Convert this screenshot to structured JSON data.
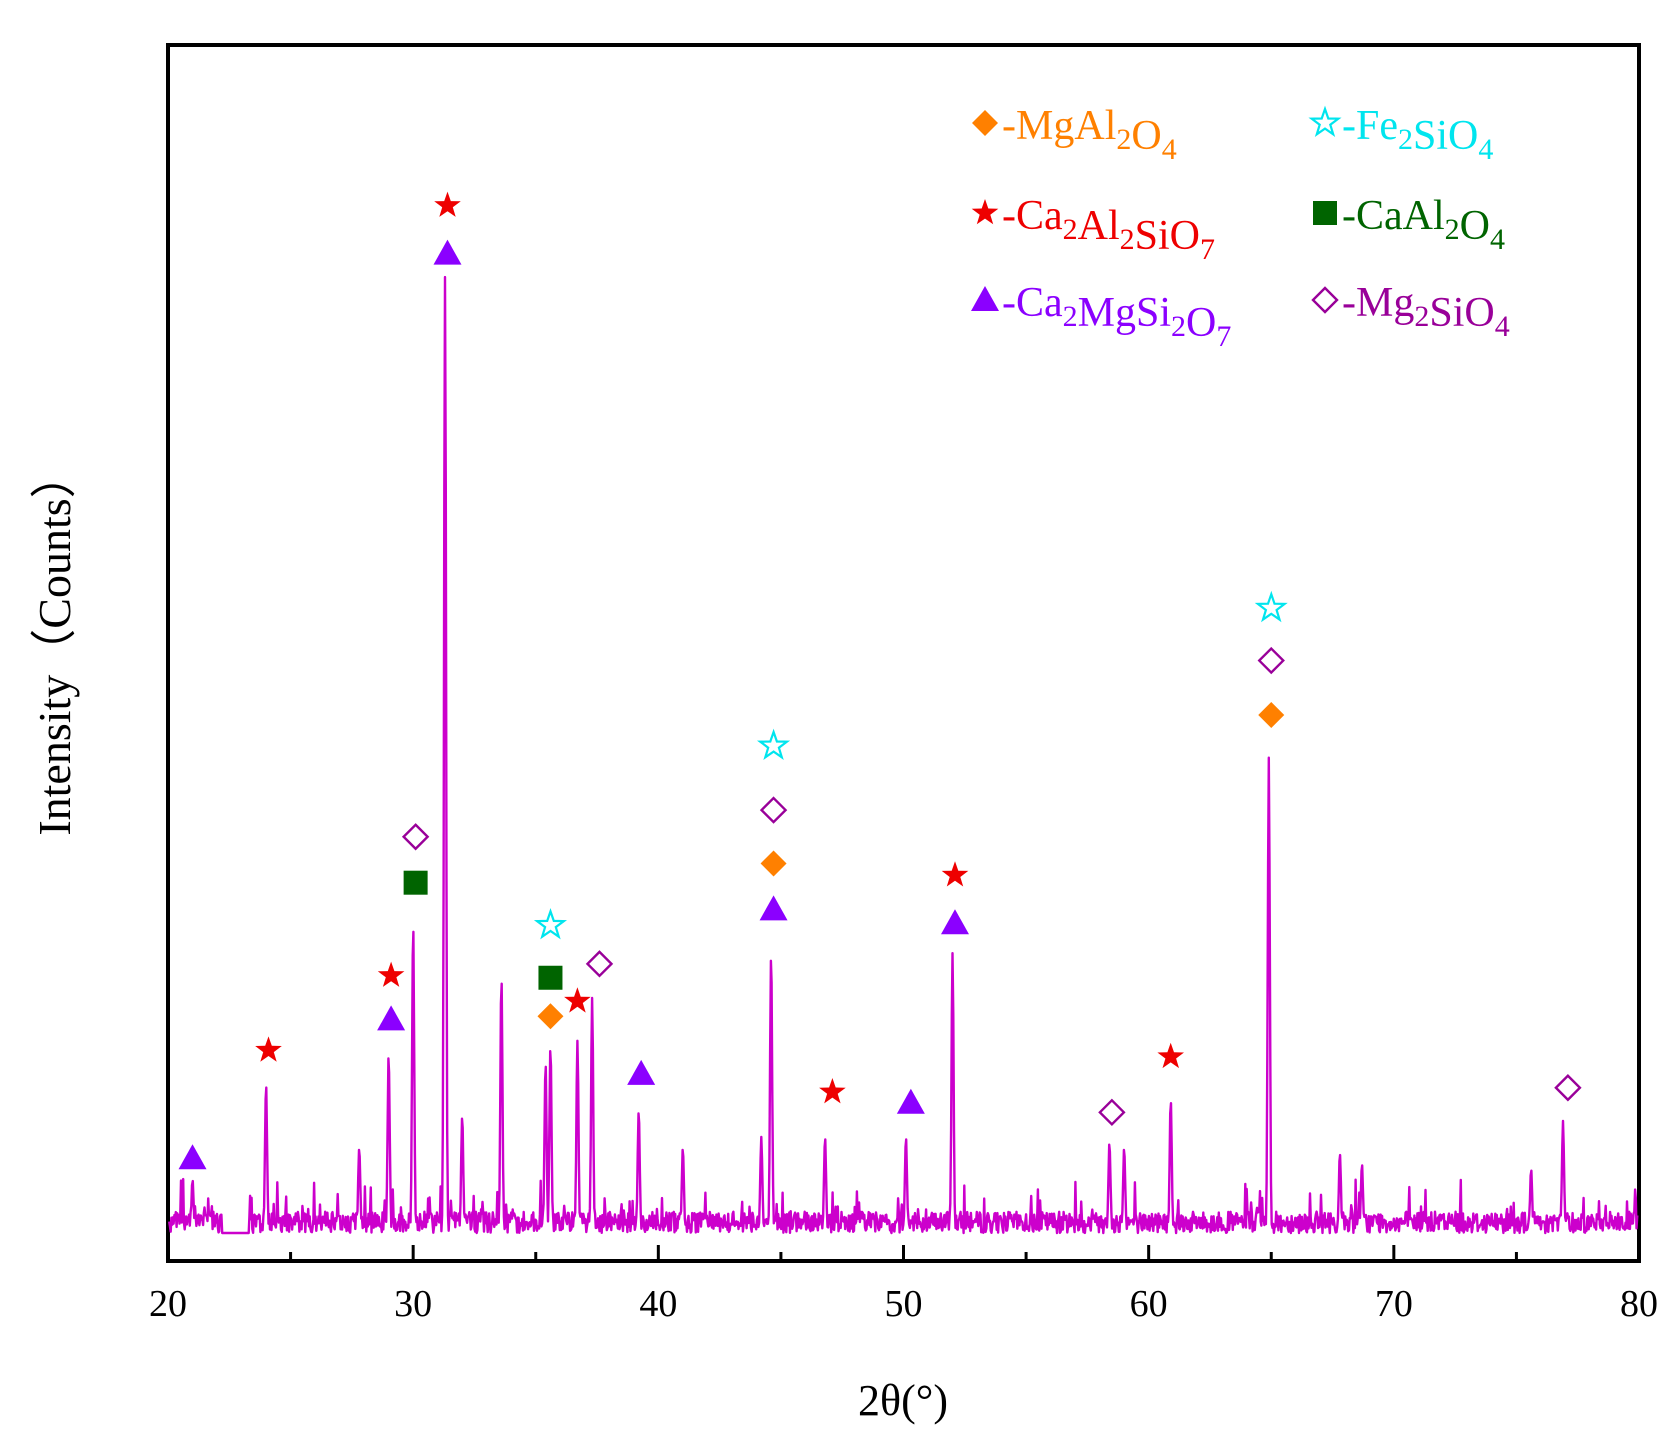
{
  "chart_data": {
    "type": "line",
    "title": "",
    "xlabel": "2θ(°)",
    "ylabel": "Intensity（Counts）",
    "xlim": [
      20,
      80
    ],
    "ylim": [
      0,
      1000
    ],
    "x_ticks": [
      20,
      30,
      40,
      50,
      60,
      70,
      80
    ],
    "x_minor_ticks": [
      25,
      35,
      45,
      55,
      65,
      75
    ],
    "grid": false,
    "legend_position": "top-right",
    "colors": {
      "trace": "#cc00cc",
      "axis": "#000000",
      "MgAl2O4": "#ff8000",
      "Fe2SiO4": "#00e5ee",
      "Ca2Al2SiO7": "#ee0000",
      "CaAl2O4": "#006400",
      "Ca2MgSi2O7": "#8b00ff",
      "Mg2SiO4": "#990099"
    },
    "legend": [
      {
        "id": "MgAl2O4",
        "marker": "diamond-filled",
        "prefix": "-",
        "parts": [
          [
            "Mg",
            ""
          ],
          [
            "Al",
            ""
          ],
          [
            "2",
            "sub"
          ],
          [
            "O",
            ""
          ],
          [
            "4",
            "sub"
          ]
        ]
      },
      {
        "id": "Fe2SiO4",
        "marker": "star-open",
        "prefix": "-",
        "parts": [
          [
            "Fe",
            ""
          ],
          [
            "2",
            "sub"
          ],
          [
            "SiO",
            ""
          ],
          [
            "4",
            "sub"
          ]
        ]
      },
      {
        "id": "Ca2Al2SiO7",
        "marker": "star-filled",
        "prefix": "-",
        "parts": [
          [
            "Ca",
            ""
          ],
          [
            "2",
            "sub"
          ],
          [
            "Al",
            ""
          ],
          [
            "2",
            "sub"
          ],
          [
            "SiO",
            ""
          ],
          [
            "7",
            "sub"
          ]
        ]
      },
      {
        "id": "CaAl2O4",
        "marker": "square-filled",
        "prefix": "-",
        "parts": [
          [
            "CaAl",
            ""
          ],
          [
            "2",
            "sub"
          ],
          [
            "O",
            ""
          ],
          [
            "4",
            "sub"
          ]
        ]
      },
      {
        "id": "Ca2MgSi2O7",
        "marker": "triangle-filled",
        "prefix": "-",
        "parts": [
          [
            "Ca",
            ""
          ],
          [
            "2",
            "sub"
          ],
          [
            "MgSi",
            ""
          ],
          [
            "2",
            "sub"
          ],
          [
            "O",
            ""
          ],
          [
            "7",
            "sub"
          ]
        ]
      },
      {
        "id": "Mg2SiO4",
        "marker": "diamond-open",
        "prefix": "-",
        "parts": [
          [
            "Mg",
            ""
          ],
          [
            "2",
            "sub"
          ],
          [
            "SiO",
            ""
          ],
          [
            "4",
            "sub"
          ]
        ]
      }
    ],
    "peaks": [
      {
        "x": 21.0,
        "y": 50
      },
      {
        "x": 24.0,
        "y": 140
      },
      {
        "x": 27.8,
        "y": 80
      },
      {
        "x": 29.0,
        "y": 168
      },
      {
        "x": 30.0,
        "y": 290
      },
      {
        "x": 31.3,
        "y": 895
      },
      {
        "x": 32.0,
        "y": 110
      },
      {
        "x": 33.6,
        "y": 240
      },
      {
        "x": 35.4,
        "y": 160
      },
      {
        "x": 35.6,
        "y": 175
      },
      {
        "x": 36.7,
        "y": 180
      },
      {
        "x": 37.3,
        "y": 220
      },
      {
        "x": 39.2,
        "y": 115
      },
      {
        "x": 41.0,
        "y": 80
      },
      {
        "x": 44.2,
        "y": 90
      },
      {
        "x": 44.6,
        "y": 262
      },
      {
        "x": 46.8,
        "y": 90
      },
      {
        "x": 50.1,
        "y": 90
      },
      {
        "x": 52.0,
        "y": 262
      },
      {
        "x": 58.4,
        "y": 85
      },
      {
        "x": 59.0,
        "y": 80
      },
      {
        "x": 60.9,
        "y": 125
      },
      {
        "x": 64.9,
        "y": 445
      },
      {
        "x": 67.8,
        "y": 75
      },
      {
        "x": 68.7,
        "y": 65
      },
      {
        "x": 75.6,
        "y": 60
      },
      {
        "x": 76.9,
        "y": 105
      }
    ],
    "phase_markers": [
      {
        "phase": "Ca2MgSi2O7",
        "x": 21.0,
        "y": 70
      },
      {
        "phase": "Ca2Al2SiO7",
        "x": 24.1,
        "y": 171
      },
      {
        "phase": "Ca2MgSi2O7",
        "x": 29.1,
        "y": 200
      },
      {
        "phase": "Ca2Al2SiO7",
        "x": 29.1,
        "y": 241
      },
      {
        "phase": "CaAl2O4",
        "x": 30.1,
        "y": 328
      },
      {
        "phase": "Mg2SiO4",
        "x": 30.1,
        "y": 371
      },
      {
        "phase": "Ca2MgSi2O7",
        "x": 31.4,
        "y": 917
      },
      {
        "phase": "Ca2Al2SiO7",
        "x": 31.4,
        "y": 962
      },
      {
        "phase": "MgAl2O4",
        "x": 35.6,
        "y": 203
      },
      {
        "phase": "CaAl2O4",
        "x": 35.6,
        "y": 239
      },
      {
        "phase": "Fe2SiO4",
        "x": 35.6,
        "y": 288
      },
      {
        "phase": "Ca2Al2SiO7",
        "x": 36.7,
        "y": 217
      },
      {
        "phase": "Mg2SiO4",
        "x": 37.6,
        "y": 252
      },
      {
        "phase": "Ca2MgSi2O7",
        "x": 39.3,
        "y": 149
      },
      {
        "phase": "MgAl2O4",
        "x": 44.7,
        "y": 346
      },
      {
        "phase": "Ca2MgSi2O7",
        "x": 44.7,
        "y": 303
      },
      {
        "phase": "Mg2SiO4",
        "x": 44.7,
        "y": 396
      },
      {
        "phase": "Fe2SiO4",
        "x": 44.7,
        "y": 456
      },
      {
        "phase": "Ca2Al2SiO7",
        "x": 47.1,
        "y": 132
      },
      {
        "phase": "Ca2MgSi2O7",
        "x": 50.3,
        "y": 122
      },
      {
        "phase": "Ca2MgSi2O7",
        "x": 52.1,
        "y": 290
      },
      {
        "phase": "Ca2Al2SiO7",
        "x": 52.1,
        "y": 335
      },
      {
        "phase": "Mg2SiO4",
        "x": 58.5,
        "y": 113
      },
      {
        "phase": "Ca2Al2SiO7",
        "x": 60.9,
        "y": 165
      },
      {
        "phase": "MgAl2O4",
        "x": 65.0,
        "y": 485
      },
      {
        "phase": "Mg2SiO4",
        "x": 65.0,
        "y": 536
      },
      {
        "phase": "Fe2SiO4",
        "x": 65.0,
        "y": 585
      },
      {
        "phase": "Mg2SiO4",
        "x": 77.1,
        "y": 136
      }
    ]
  }
}
